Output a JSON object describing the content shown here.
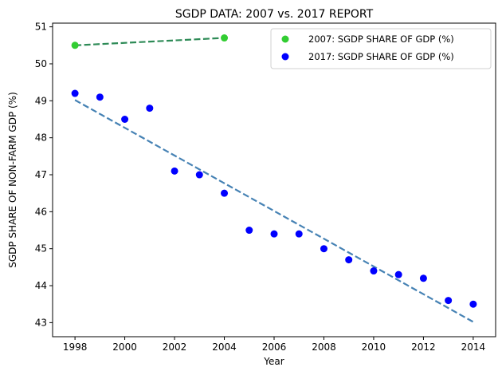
{
  "chart_data": {
    "type": "scatter",
    "title": "SGDP DATA: 2007 vs. 2017 REPORT",
    "xlabel": "Year",
    "ylabel": "SGDP SHARE OF NON-FARM GDP (%)",
    "xlim": [
      1997.1,
      2014.9
    ],
    "ylim": [
      42.62,
      51.1
    ],
    "xticks": [
      1998,
      2000,
      2002,
      2004,
      2006,
      2008,
      2010,
      2012,
      2014
    ],
    "yticks": [
      43,
      44,
      45,
      46,
      47,
      48,
      49,
      50,
      51
    ],
    "grid": false,
    "legend_position": "top-right",
    "series": [
      {
        "name": "2007: SGDP SHARE OF GDP (%)",
        "color": "#32cd32",
        "trend_color": "#2e8b57",
        "x": [
          1998,
          2004
        ],
        "y": [
          50.5,
          50.7
        ],
        "trend": [
          [
            1998,
            50.5
          ],
          [
            2004,
            50.7
          ]
        ]
      },
      {
        "name": "2017: SGDP SHARE OF GDP (%)",
        "color": "#0000ff",
        "trend_color": "#4682b4",
        "x": [
          1998,
          1999,
          2000,
          2001,
          2002,
          2003,
          2004,
          2005,
          2006,
          2007,
          2008,
          2009,
          2010,
          2011,
          2012,
          2013,
          2014
        ],
        "y": [
          49.2,
          49.1,
          48.5,
          48.8,
          47.1,
          47.0,
          46.5,
          45.5,
          45.4,
          45.4,
          45.0,
          44.7,
          44.4,
          44.3,
          44.2,
          43.6,
          43.5
        ],
        "trend": [
          [
            1998,
            49.02
          ],
          [
            2014,
            43.02
          ]
        ]
      }
    ]
  }
}
